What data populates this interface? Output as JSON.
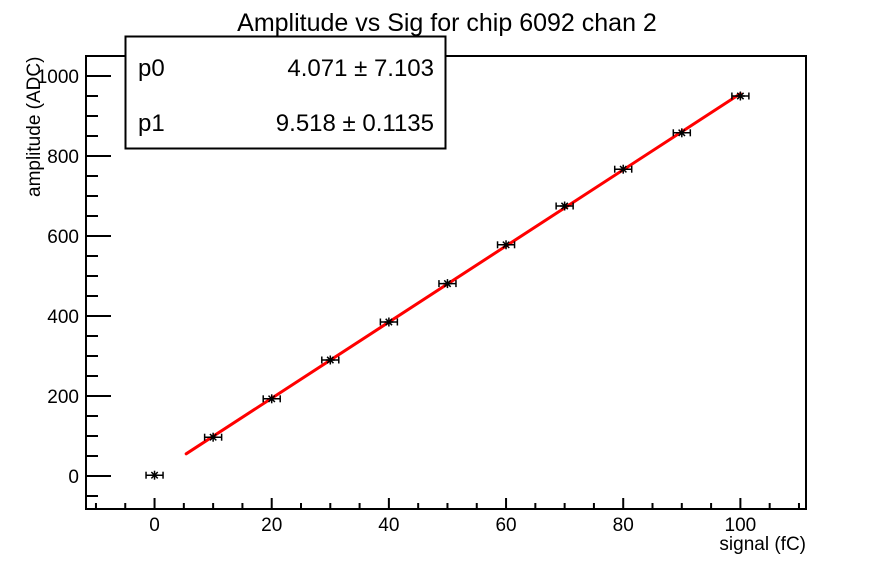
{
  "chart_data": {
    "type": "scatter",
    "title": "Amplitude vs Sig for chip 6092 chan 2",
    "xlabel": "signal (fC)",
    "ylabel": "amplitude (ADC)",
    "x": [
      0,
      10,
      20,
      30,
      40,
      50,
      60,
      70,
      80,
      90,
      100
    ],
    "y": [
      2,
      97,
      193,
      290,
      385,
      481,
      578,
      675,
      767,
      858,
      950
    ],
    "xlim": [
      -11.7,
      111.2
    ],
    "ylim": [
      -82.5,
      1050
    ],
    "x_major_ticks": [
      0,
      20,
      40,
      60,
      80,
      100
    ],
    "x_minor_step": 5,
    "y_major_ticks": [
      0,
      200,
      400,
      600,
      800,
      1000
    ],
    "y_minor_step": 50,
    "grid": false,
    "legend_position": "none",
    "marker_style": "asterisk-with-x-error-bars",
    "marker_color": "#000000",
    "fit": {
      "type": "linear",
      "p0": 4.071,
      "p1": 9.518,
      "draw_range": [
        5.4,
        100
      ],
      "color": "#ff0000"
    },
    "stats_box": {
      "rows": [
        {
          "name": "p0",
          "value": "4.071 ± 7.103"
        },
        {
          "name": "p1",
          "value": "9.518 ± 0.1135"
        }
      ]
    },
    "colors": {
      "axis": "#000000",
      "background": "#ffffff",
      "fit_line": "#ff0000",
      "marker": "#000000"
    }
  }
}
